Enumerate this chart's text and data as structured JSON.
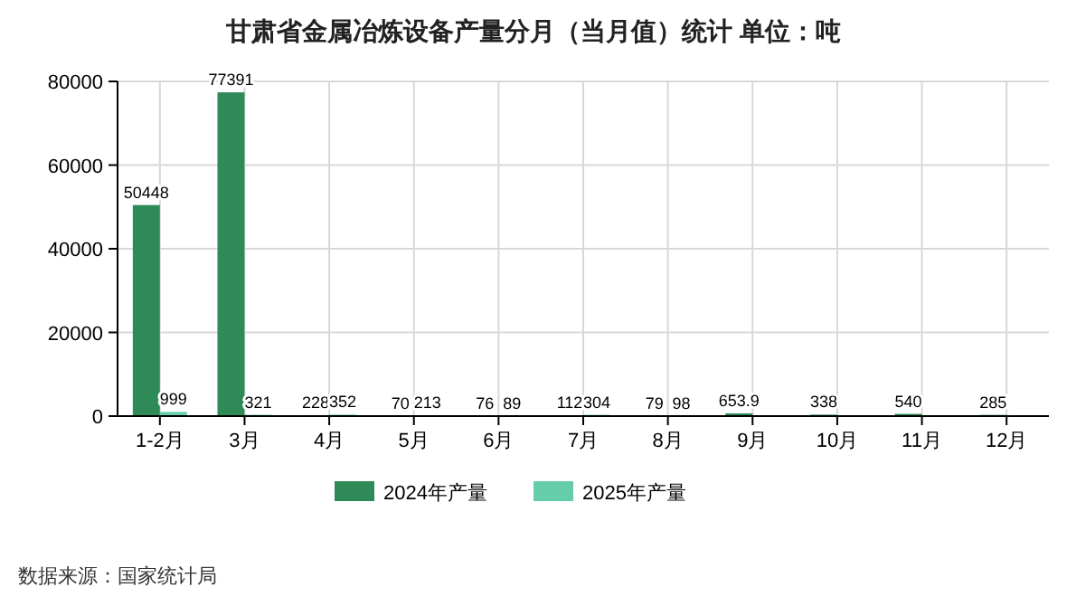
{
  "chart_data": {
    "type": "bar",
    "title": "甘肃省金属冶炼设备产量分月（当月值）统计  单位：吨",
    "categories": [
      "1-2月",
      "3月",
      "4月",
      "5月",
      "6月",
      "7月",
      "8月",
      "9月",
      "10月",
      "11月",
      "12月"
    ],
    "series": [
      {
        "name": "2024年产量",
        "color": "#2e8b57",
        "values": [
          50448,
          77391,
          228,
          70,
          76,
          112,
          79,
          653.9,
          338,
          540,
          285
        ]
      },
      {
        "name": "2025年产量",
        "color": "#66cdaa",
        "values": [
          999,
          321,
          352,
          213,
          89,
          304,
          98,
          null,
          null,
          null,
          null
        ]
      }
    ],
    "ylim": [
      0,
      80000
    ],
    "yticks": [
      0,
      20000,
      40000,
      60000,
      80000
    ],
    "grid": true,
    "legend": "bottom",
    "data_labels": true,
    "annotations": [
      "数据来源：国家统计局"
    ]
  }
}
